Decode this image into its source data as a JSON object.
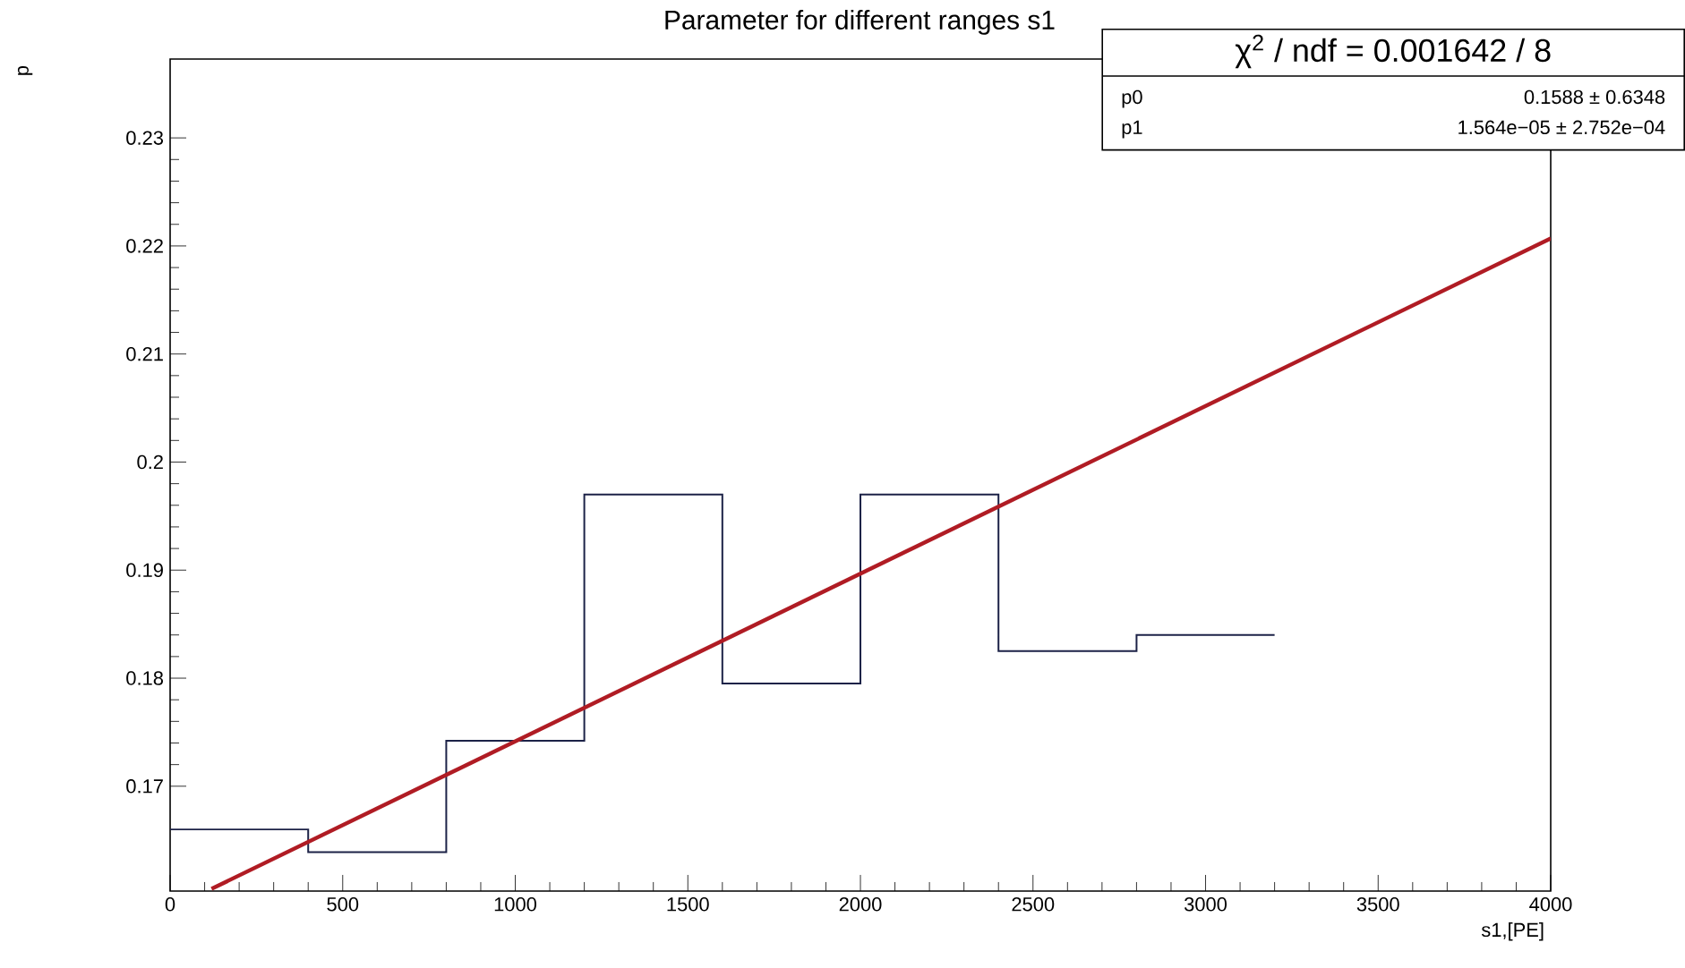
{
  "chart_data": {
    "type": "histogram",
    "title": "Parameter for different ranges s1",
    "xlabel": "s1,[PE]",
    "ylabel": "p",
    "bins": [
      0,
      400,
      800,
      1200,
      1600,
      2000,
      2400,
      2800,
      3200
    ],
    "series": [
      {
        "color": "#1c2247",
        "values": [
          0.166,
          0.1639,
          0.1742,
          0.197,
          0.1795,
          0.197,
          0.1825,
          0.184
        ]
      },
      {
        "type": "line",
        "color": "#b01c24",
        "x": [
          120,
          4000
        ],
        "values": [
          0.1605,
          0.2207
        ]
      }
    ],
    "xlim": [
      0,
      4000
    ],
    "ylim": [
      0.1603,
      0.2373
    ],
    "xticks": [
      0,
      500,
      1000,
      1500,
      2000,
      2500,
      3000,
      3500,
      4000
    ],
    "yticks": [
      0.17,
      0.18,
      0.19,
      0.2,
      0.21,
      0.22,
      0.23
    ],
    "annotations": [
      "χ$^{2}$ / ndf = 0.001642 / 8",
      "p0",
      "0.1588 ± 0.6348",
      "p1",
      "1.564e−05 ± 2.752e−04"
    ],
    "grid": false
  }
}
